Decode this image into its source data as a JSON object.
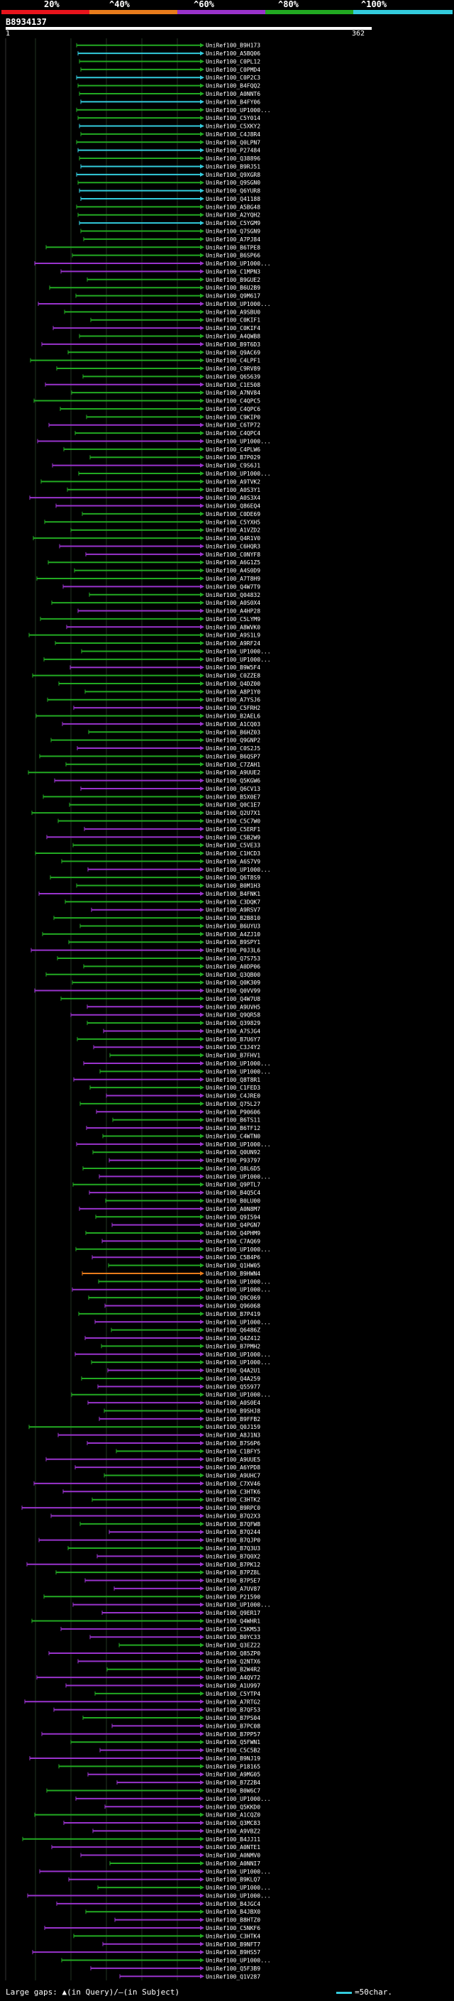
{
  "legend": {
    "labels": [
      "20%",
      "^40%",
      "^60%",
      "^80%",
      "^100%"
    ],
    "colors": [
      "#e8141c",
      "#e87c1c",
      "#9933cc",
      "#22aa22",
      "#33ccdd"
    ]
  },
  "query": {
    "id": "B8934137",
    "scale_start": "1",
    "scale_end": "362"
  },
  "hits": [
    "UniRef100_B9H173",
    "UniRef100_A5BQ06",
    "UniRef100_C0PL12",
    "UniRef100_C0PMD4",
    "UniRef100_C0P2C3",
    "UniRef100_B4FQQ2",
    "UniRef100_A0NNT6",
    "UniRef100_B4FY06",
    "UniRef100_UP1000...",
    "UniRef100_C5Y014",
    "UniRef100_C5XKY2",
    "UniRef100_C4J8R4",
    "UniRef100_Q0LPN7",
    "UniRef100_P27484",
    "UniRef100_Q38896",
    "UniRef100_B9RJ51",
    "UniRef100_Q9XGR8",
    "UniRef100_Q9SGN0",
    "UniRef100_Q6YUR8",
    "UniRef100_Q41188",
    "UniRef100_A5BG48",
    "UniRef100_A2YQH2",
    "UniRef100_C5YGM9",
    "UniRef100_Q7SGN9",
    "UniRef100_A7PJ84",
    "UniRef100_B6TPE8",
    "UniRef100_B6SP66",
    "UniRef100_UP1000...",
    "UniRef100_C1MPN3",
    "UniRef100_B9GUE2",
    "UniRef100_B6U2B9",
    "UniRef100_Q9M617",
    "UniRef100_UP1000...",
    "UniRef100_A9SBU0",
    "UniRef100_C0KIF1",
    "UniRef100_C0KIF4",
    "UniRef100_A4QWB8",
    "UniRef100_B9T6D3",
    "UniRef100_Q9AC69",
    "UniRef100_C4LPF1",
    "UniRef100_C9RV89",
    "UniRef100_Q65639",
    "UniRef100_C1E508",
    "UniRef100_A7NV84",
    "UniRef100_C4QPC5",
    "UniRef100_C4QPC6",
    "UniRef100_C9KIP0",
    "UniRef100_C6TP72",
    "UniRef100_C4QPC4",
    "UniRef100_UP1000...",
    "UniRef100_C4PLW6",
    "UniRef100_B7P029",
    "UniRef100_C9S6J1",
    "UniRef100_UP1000...",
    "UniRef100_A9TVK2",
    "UniRef100_A0S3Y1",
    "UniRef100_A0S3X4",
    "UniRef100_Q86EQ4",
    "UniRef100_C0DE69",
    "UniRef100_C5YXH5",
    "UniRef100_A1VZD2",
    "UniRef100_Q4R1V0",
    "UniRef100_C6HQR3",
    "UniRef100_C0NYF8",
    "UniRef100_A6G1Z5",
    "UniRef100_A4S0D9",
    "UniRef100_A7T8H9",
    "UniRef100_Q4W7T9",
    "UniRef100_Q04832",
    "UniRef100_A0S0X4",
    "UniRef100_A4HP28",
    "UniRef100_C5LYM9",
    "UniRef100_A8WVK0",
    "UniRef100_A9S1L9",
    "UniRef100_A9RF24",
    "UniRef100_UP1000...",
    "UniRef100_UP1000...",
    "UniRef100_B9W5F4",
    "UniRef100_C0ZZE8",
    "UniRef100_Q4DZ00",
    "UniRef100_A8P1Y0",
    "UniRef100_A7YSJ6",
    "UniRef100_C5FRH2",
    "UniRef100_B2AEL6",
    "UniRef100_A1CQ03",
    "UniRef100_B6HZ03",
    "UniRef100_Q9GNP2",
    "UniRef100_C0S2J5",
    "UniRef100_B6QSP7",
    "UniRef100_C7ZAH1",
    "UniRef100_A9UUE2",
    "UniRef100_Q5KGW6",
    "UniRef100_Q6CV13",
    "UniRef100_B5X0E7",
    "UniRef100_Q0C1E7",
    "UniRef100_Q2U7X1",
    "UniRef100_C5C7W0",
    "UniRef100_C5ERF1",
    "UniRef100_C5B2W9",
    "UniRef100_C5VE33",
    "UniRef100_C1HCD3",
    "UniRef100_A6S7V9",
    "UniRef100_UP1000...",
    "UniRef100_Q6T8S9",
    "UniRef100_B0M1H3",
    "UniRef100_B4FNK1",
    "UniRef100_C3DQK7",
    "UniRef100_A9RSV7",
    "UniRef100_B2B810",
    "UniRef100_B6UYU3",
    "UniRef100_A4ZJ10",
    "UniRef100_B9SPY1",
    "UniRef100_P0J3L6",
    "UniRef100_Q7S753",
    "UniRef100_A0DP06",
    "UniRef100_Q3QB00",
    "UniRef100_Q0K309",
    "UniRef100_Q0VV99",
    "UniRef100_Q4W7U8",
    "UniRef100_A9UVH5",
    "UniRef100_Q9QR58",
    "UniRef100_Q39829",
    "UniRef100_A7SJG4",
    "UniRef100_B7U6Y7",
    "UniRef100_C3J4Y2",
    "UniRef100_B7FHV1",
    "UniRef100_UP1000...",
    "UniRef100_UP1000...",
    "UniRef100_Q8T8R1",
    "UniRef100_C1FED3",
    "UniRef100_C4JRE0",
    "UniRef100_Q75L27",
    "UniRef100_P90606",
    "UniRef100_B6TS11",
    "UniRef100_B6TF12",
    "UniRef100_C4WTN0",
    "UniRef100_UP1000...",
    "UniRef100_Q0UN92",
    "UniRef100_P93797",
    "UniRef100_Q8L6D5",
    "UniRef100_UP1000...",
    "UniRef100_Q9PTL7",
    "UniRef100_B4Q5C4",
    "UniRef100_B0LU00",
    "UniRef100_A0N8M7",
    "UniRef100_Q9I594",
    "UniRef100_Q4PGN7",
    "UniRef100_Q4PHM9",
    "UniRef100_C7AQ69",
    "UniRef100_UP1000...",
    "UniRef100_C5B4P6",
    "UniRef100_Q1HW05",
    "UniRef100_B9HWN4",
    "UniRef100_UP1000...",
    "UniRef100_UP1000...",
    "UniRef100_Q9C069",
    "UniRef100_Q96068",
    "UniRef100_B7P419",
    "UniRef100_UP1000...",
    "UniRef100_Q6486Z",
    "UniRef100_Q4Z412",
    "UniRef100_B7PMH2",
    "UniRef100_UP1000...",
    "UniRef100_UP1000...",
    "UniRef100_Q4A2U1",
    "UniRef100_Q4A259",
    "UniRef100_Q55977",
    "UniRef100_UP1000...",
    "UniRef100_A0S0E4",
    "UniRef100_B9SHJ8",
    "UniRef100_B9FFB2",
    "UniRef100_Q0J159",
    "UniRef100_A8J1N3",
    "UniRef100_B7S6P6",
    "UniRef100_C1BFY5",
    "UniRef100_A9UUE5",
    "UniRef100_A6YPD8",
    "UniRef100_A9UHC7",
    "UniRef100_C7XV46",
    "UniRef100_C3HTK6",
    "UniRef100_C3HTK2",
    "UniRef100_B9RPC0",
    "UniRef100_B7Q2X3",
    "UniRef100_B7QFW8",
    "UniRef100_B7Q244",
    "UniRef100_B7QJP0",
    "UniRef100_B7Q3U3",
    "UniRef100_B7Q0X2",
    "UniRef100_B7PK12",
    "UniRef100_B7PZ8L",
    "UniRef100_B7P5E7",
    "UniRef100_A7UV87",
    "UniRef100_P21590",
    "UniRef100_UP1000...",
    "UniRef100_Q9ER17",
    "UniRef100_Q4WHR1",
    "UniRef100_C5KM53",
    "UniRef100_B0YC33",
    "UniRef100_Q3EZ22",
    "UniRef100_Q85ZP0",
    "UniRef100_Q2NTX6",
    "UniRef100_B2W4R2",
    "UniRef100_A4QV72",
    "UniRef100_A1U997",
    "UniRef100_C5YTP4",
    "UniRef100_A7RTG2",
    "UniRef100_B7QF53",
    "UniRef100_B7PS04",
    "UniRef100_B7PC08",
    "UniRef100_B7PP57",
    "UniRef100_Q5FWN1",
    "UniRef100_C5C5B2",
    "UniRef100_B9NJ19",
    "UniRef100_P18165",
    "UniRef100_A9MG05",
    "UniRef100_B7Z2B4",
    "UniRef100_B0W6C7",
    "UniRef100_UP1000...",
    "UniRef100_Q5KKD0",
    "UniRef100_A1CQZ0",
    "UniRef100_Q3MC83",
    "UniRef100_A9VBZ2",
    "UniRef100_B4JJ11",
    "UniRef100_A0NTE1",
    "UniRef100_A0NMV0",
    "UniRef100_A0NNI7",
    "UniRef100_UP1000...",
    "UniRef100_B9KLQ7",
    "UniRef100_UP1000...",
    "UniRef100_UP1000...",
    "UniRef100_B4JGC4",
    "UniRef100_B4JBX0",
    "UniRef100_B8HTZ0",
    "UniRef100_C5NKF6",
    "UniRef100_C3HTK4",
    "UniRef100_B9NFT7",
    "UniRef100_B9HS57",
    "UniRef100_UP1000...",
    "UniRef100_Q5F3B9",
    "UniRef100_Q1V287"
  ],
  "footer": {
    "large_gaps": "Large gaps:",
    "in_query": "(in Query)",
    "separator": "/",
    "in_subject": "(in Subject)",
    "scale_label": "=50char."
  }
}
